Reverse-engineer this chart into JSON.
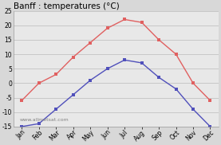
{
  "title": "Banff : temperatures (°C)",
  "months": [
    "Jan",
    "Feb",
    "Mar",
    "Apr",
    "May",
    "Jun",
    "Jul",
    "Aug",
    "Sep",
    "Oct",
    "Nov",
    "Dec"
  ],
  "high_temps": [
    -6,
    0,
    3,
    9,
    14,
    19,
    22,
    21,
    15,
    10,
    0,
    -6
  ],
  "low_temps": [
    -15,
    -14,
    -9,
    -4,
    1,
    5,
    8,
    7,
    2,
    -2,
    -9,
    -15
  ],
  "high_color": "#e06060",
  "low_color": "#5050bb",
  "bg_color": "#d8d8d8",
  "plot_bg_color": "#e8e8e8",
  "ylim": [
    -15,
    25
  ],
  "yticks": [
    -15,
    -10,
    -5,
    0,
    5,
    10,
    15,
    20,
    25
  ],
  "watermark": "www.allmetsat.com",
  "grid_color": "#bbbbbb",
  "title_fontsize": 7.5,
  "tick_fontsize": 5.5,
  "marker": "s",
  "marker_size": 2.5,
  "linewidth": 1.0
}
